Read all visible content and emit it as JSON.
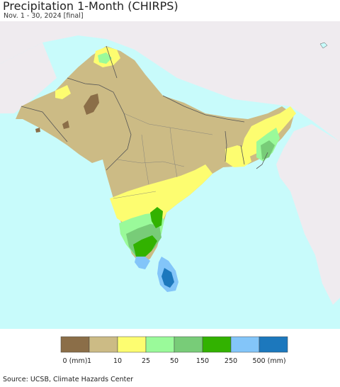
{
  "title": "Precipitation 1-Month (CHIRPS)",
  "subtitle": "Nov. 1 - 30, 2024 [final]",
  "source": "Source: UCSB, Climate Hazards Center",
  "colors": {
    "ocean": "#c8fbfb",
    "land_outside": "#efebef",
    "border": "#555555",
    "class_0": "#8b6e48",
    "class_1": "#ccbb85",
    "class_10": "#fdfd70",
    "class_25": "#9afa9a",
    "class_50": "#78cc78",
    "class_150": "#32b200",
    "class_250": "#83c5f9",
    "class_500": "#1c78bd"
  },
  "legend": {
    "colors": [
      "#8b6e48",
      "#ccbb85",
      "#fdfd70",
      "#9afa9a",
      "#78cc78",
      "#32b200",
      "#83c5f9",
      "#1c78bd"
    ],
    "labels": [
      "0 (mm)",
      "1",
      "10",
      "25",
      "50",
      "150",
      "250",
      "500 (mm)"
    ]
  }
}
